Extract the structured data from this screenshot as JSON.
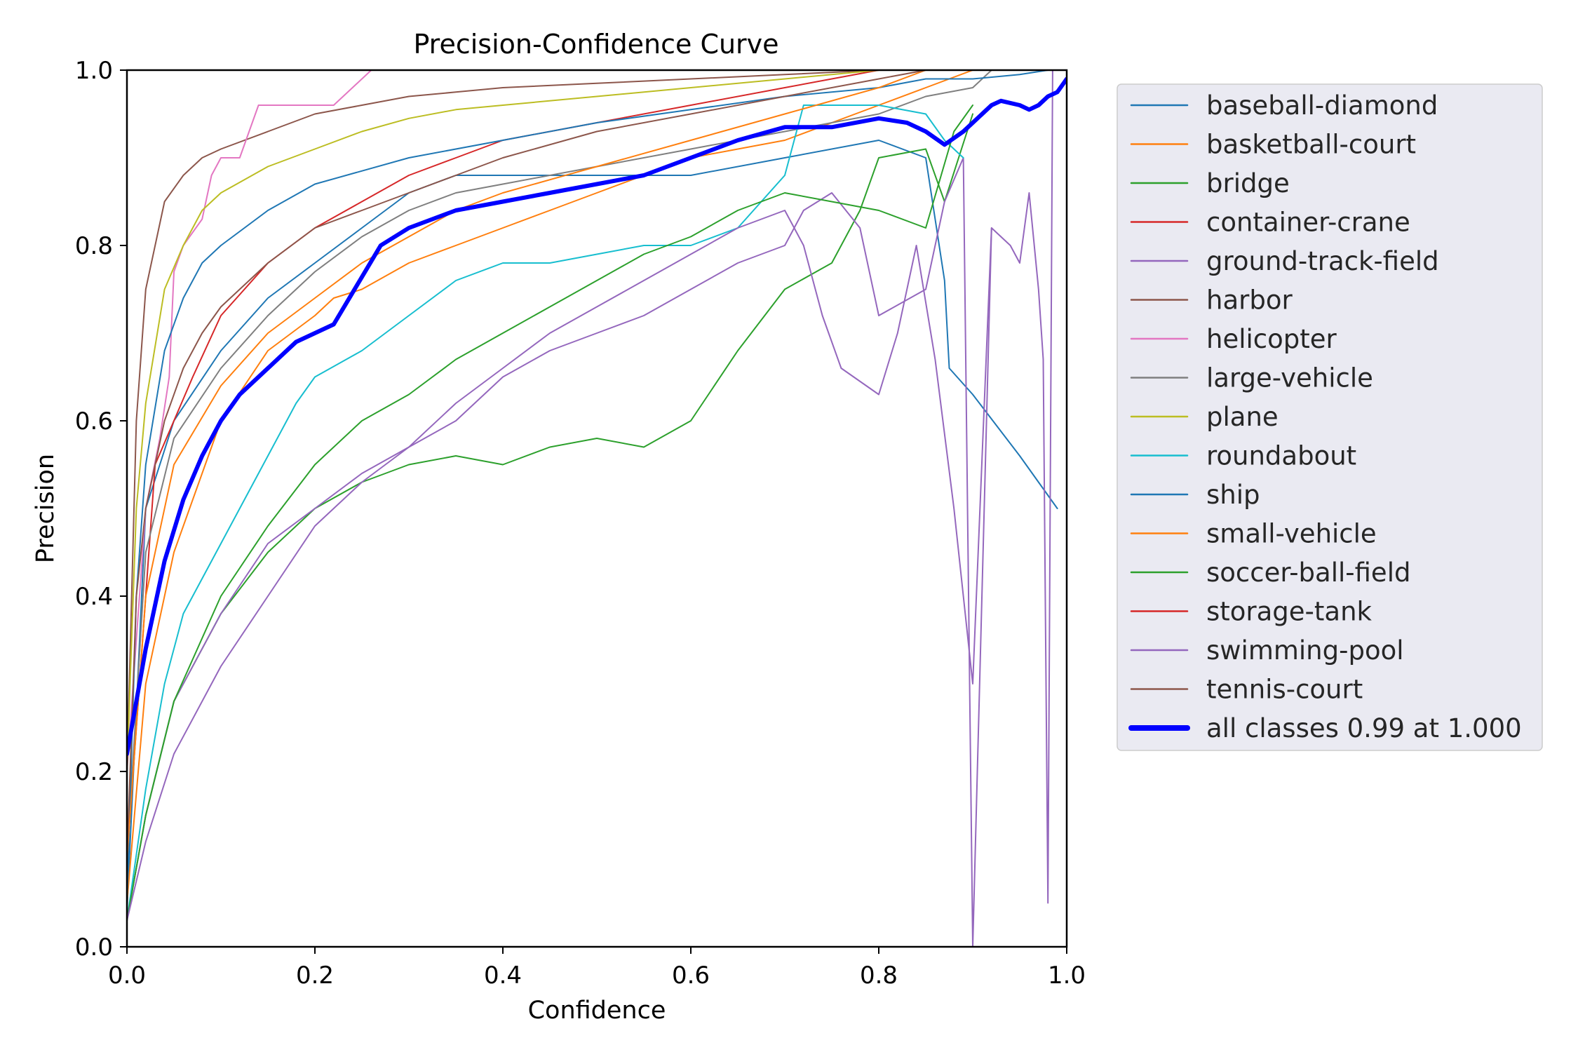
{
  "chart_data": {
    "type": "line",
    "title": "Precision-Confidence Curve",
    "xlabel": "Confidence",
    "ylabel": "Precision",
    "xlim": [
      0,
      1
    ],
    "ylim": [
      0,
      1
    ],
    "xticks": [
      "0.0",
      "0.2",
      "0.4",
      "0.6",
      "0.8",
      "1.0"
    ],
    "yticks": [
      "0.0",
      "0.2",
      "0.4",
      "0.6",
      "0.8",
      "1.0"
    ],
    "grid": false,
    "legend_position": "outside-right-top",
    "series": [
      {
        "name": "baseball-diamond",
        "color": "#1f77b4",
        "width": 2,
        "x": [
          0.0,
          0.02,
          0.05,
          0.1,
          0.15,
          0.2,
          0.25,
          0.3,
          0.35,
          0.4,
          0.5,
          0.6,
          0.7,
          0.8,
          0.85,
          0.87,
          0.875,
          0.9,
          0.95,
          0.99
        ],
        "y": [
          0.04,
          0.5,
          0.6,
          0.68,
          0.74,
          0.78,
          0.82,
          0.86,
          0.88,
          0.88,
          0.88,
          0.88,
          0.9,
          0.92,
          0.9,
          0.76,
          0.66,
          0.63,
          0.56,
          0.5
        ]
      },
      {
        "name": "basketball-court",
        "color": "#ff7f0e",
        "width": 2,
        "x": [
          0.0,
          0.02,
          0.05,
          0.1,
          0.15,
          0.2,
          0.22,
          0.25,
          0.3,
          0.35,
          0.4,
          0.45,
          0.5,
          0.55,
          0.6,
          0.7,
          0.8,
          0.85,
          0.9
        ],
        "y": [
          0.05,
          0.3,
          0.45,
          0.6,
          0.68,
          0.72,
          0.74,
          0.75,
          0.78,
          0.8,
          0.82,
          0.84,
          0.86,
          0.88,
          0.9,
          0.92,
          0.96,
          0.98,
          1.0
        ]
      },
      {
        "name": "bridge",
        "color": "#2ca02c",
        "width": 2,
        "x": [
          0.0,
          0.02,
          0.05,
          0.1,
          0.15,
          0.2,
          0.25,
          0.3,
          0.35,
          0.4,
          0.45,
          0.5,
          0.55,
          0.6,
          0.65,
          0.7,
          0.75,
          0.78,
          0.8,
          0.85,
          0.87,
          0.9
        ],
        "y": [
          0.03,
          0.15,
          0.28,
          0.38,
          0.45,
          0.5,
          0.53,
          0.55,
          0.56,
          0.55,
          0.57,
          0.58,
          0.57,
          0.6,
          0.68,
          0.75,
          0.78,
          0.84,
          0.9,
          0.91,
          0.85,
          0.95
        ]
      },
      {
        "name": "container-crane",
        "color": "#d62728",
        "width": 2,
        "x": [
          0.0,
          0.03,
          0.07,
          0.1,
          0.15,
          0.2,
          0.25,
          0.3,
          0.35,
          0.4,
          0.5,
          0.6,
          0.7,
          0.75,
          0.8
        ],
        "y": [
          0.1,
          0.55,
          0.65,
          0.72,
          0.78,
          0.82,
          0.85,
          0.88,
          0.9,
          0.92,
          0.94,
          0.96,
          0.98,
          0.99,
          1.0
        ]
      },
      {
        "name": "ground-track-field",
        "color": "#9467bd",
        "width": 2,
        "x": [
          0.0,
          0.02,
          0.05,
          0.1,
          0.15,
          0.2,
          0.25,
          0.3,
          0.35,
          0.4,
          0.45,
          0.5,
          0.55,
          0.6,
          0.65,
          0.7,
          0.72,
          0.75,
          0.78,
          0.8,
          0.85,
          0.87,
          0.89,
          0.9,
          0.92
        ],
        "y": [
          0.03,
          0.15,
          0.28,
          0.38,
          0.46,
          0.5,
          0.54,
          0.57,
          0.6,
          0.65,
          0.68,
          0.7,
          0.72,
          0.75,
          0.78,
          0.8,
          0.84,
          0.86,
          0.82,
          0.72,
          0.75,
          0.85,
          0.9,
          0.0,
          0.82
        ]
      },
      {
        "name": "harbor",
        "color": "#8c564b",
        "width": 2,
        "x": [
          0.0,
          0.01,
          0.02,
          0.04,
          0.06,
          0.08,
          0.1,
          0.15,
          0.2,
          0.25,
          0.3,
          0.35,
          0.4,
          0.5,
          0.6,
          0.7,
          0.8,
          0.9,
          0.95
        ],
        "y": [
          0.2,
          0.6,
          0.75,
          0.85,
          0.88,
          0.9,
          0.91,
          0.93,
          0.95,
          0.96,
          0.97,
          0.975,
          0.98,
          0.985,
          0.99,
          0.995,
          1.0,
          1.0,
          1.0
        ]
      },
      {
        "name": "helicopter",
        "color": "#e377c2",
        "width": 2,
        "x": [
          0.0,
          0.02,
          0.035,
          0.045,
          0.05,
          0.06,
          0.08,
          0.09,
          0.1,
          0.12,
          0.13,
          0.14,
          0.15,
          0.18,
          0.2,
          0.22,
          0.24,
          0.26
        ],
        "y": [
          0.2,
          0.5,
          0.58,
          0.65,
          0.77,
          0.8,
          0.83,
          0.88,
          0.9,
          0.9,
          0.93,
          0.96,
          0.96,
          0.96,
          0.96,
          0.96,
          0.98,
          1.0
        ]
      },
      {
        "name": "large-vehicle",
        "color": "#7f7f7f",
        "width": 2,
        "x": [
          0.0,
          0.02,
          0.05,
          0.1,
          0.15,
          0.2,
          0.25,
          0.3,
          0.35,
          0.4,
          0.5,
          0.6,
          0.7,
          0.8,
          0.85,
          0.9,
          0.92
        ],
        "y": [
          0.1,
          0.45,
          0.58,
          0.66,
          0.72,
          0.77,
          0.81,
          0.84,
          0.86,
          0.87,
          0.89,
          0.91,
          0.93,
          0.95,
          0.97,
          0.98,
          1.0
        ]
      },
      {
        "name": "plane",
        "color": "#bcbd22",
        "width": 2,
        "x": [
          0.0,
          0.01,
          0.02,
          0.04,
          0.06,
          0.08,
          0.1,
          0.15,
          0.2,
          0.25,
          0.3,
          0.35,
          0.4,
          0.5,
          0.6,
          0.7,
          0.8,
          0.9
        ],
        "y": [
          0.2,
          0.5,
          0.62,
          0.75,
          0.8,
          0.84,
          0.86,
          0.89,
          0.91,
          0.93,
          0.945,
          0.955,
          0.96,
          0.97,
          0.98,
          0.99,
          1.0,
          1.0
        ]
      },
      {
        "name": "roundabout",
        "color": "#17becf",
        "width": 2,
        "x": [
          0.0,
          0.02,
          0.04,
          0.06,
          0.08,
          0.1,
          0.12,
          0.15,
          0.18,
          0.2,
          0.25,
          0.3,
          0.35,
          0.4,
          0.45,
          0.5,
          0.55,
          0.6,
          0.65,
          0.7,
          0.72,
          0.75,
          0.8,
          0.85,
          0.87,
          0.89
        ],
        "y": [
          0.03,
          0.18,
          0.3,
          0.38,
          0.42,
          0.46,
          0.5,
          0.56,
          0.62,
          0.65,
          0.68,
          0.72,
          0.76,
          0.78,
          0.78,
          0.79,
          0.8,
          0.8,
          0.82,
          0.88,
          0.96,
          0.96,
          0.96,
          0.95,
          0.92,
          0.9
        ]
      },
      {
        "name": "ship",
        "color": "#1f77b4",
        "width": 2,
        "x": [
          0.0,
          0.01,
          0.02,
          0.04,
          0.06,
          0.08,
          0.1,
          0.15,
          0.2,
          0.3,
          0.4,
          0.5,
          0.6,
          0.7,
          0.8,
          0.85,
          0.9,
          0.95,
          0.98,
          0.985
        ],
        "y": [
          0.05,
          0.4,
          0.55,
          0.68,
          0.74,
          0.78,
          0.8,
          0.84,
          0.87,
          0.9,
          0.92,
          0.94,
          0.955,
          0.97,
          0.98,
          0.99,
          0.99,
          0.995,
          1.0,
          1.0
        ]
      },
      {
        "name": "small-vehicle",
        "color": "#ff7f0e",
        "width": 2,
        "x": [
          0.0,
          0.02,
          0.05,
          0.1,
          0.15,
          0.2,
          0.25,
          0.3,
          0.35,
          0.4,
          0.5,
          0.6,
          0.7,
          0.8,
          0.85
        ],
        "y": [
          0.1,
          0.4,
          0.55,
          0.64,
          0.7,
          0.74,
          0.78,
          0.81,
          0.84,
          0.86,
          0.89,
          0.92,
          0.95,
          0.98,
          1.0
        ]
      },
      {
        "name": "soccer-ball-field",
        "color": "#2ca02c",
        "width": 2,
        "x": [
          0.0,
          0.02,
          0.05,
          0.1,
          0.15,
          0.2,
          0.25,
          0.3,
          0.35,
          0.4,
          0.45,
          0.5,
          0.55,
          0.6,
          0.65,
          0.7,
          0.75,
          0.8,
          0.85,
          0.88,
          0.9
        ],
        "y": [
          0.03,
          0.15,
          0.28,
          0.4,
          0.48,
          0.55,
          0.6,
          0.63,
          0.67,
          0.7,
          0.73,
          0.76,
          0.79,
          0.81,
          0.84,
          0.86,
          0.85,
          0.84,
          0.82,
          0.93,
          0.96
        ]
      },
      {
        "name": "storage-tank",
        "color": "#d62728",
        "width": 2,
        "x": [
          0.0,
          0.245,
          0.247,
          0.3,
          0.4,
          0.5,
          0.6,
          0.7,
          0.8,
          0.9
        ],
        "y": [
          0.0,
          0.0,
          0.0,
          0.0,
          0.0,
          0.0,
          0.0,
          0.0,
          0.0,
          0.0
        ]
      },
      {
        "name": "swimming-pool",
        "color": "#9467bd",
        "width": 2,
        "x": [
          0.0,
          0.02,
          0.05,
          0.1,
          0.15,
          0.2,
          0.25,
          0.3,
          0.35,
          0.4,
          0.45,
          0.5,
          0.55,
          0.6,
          0.65,
          0.7,
          0.72,
          0.74,
          0.76,
          0.8,
          0.82,
          0.84,
          0.86,
          0.88,
          0.9,
          0.92,
          0.94,
          0.95,
          0.96,
          0.97,
          0.975,
          0.98,
          0.985
        ],
        "y": [
          0.03,
          0.12,
          0.22,
          0.32,
          0.4,
          0.48,
          0.53,
          0.57,
          0.62,
          0.66,
          0.7,
          0.73,
          0.76,
          0.79,
          0.82,
          0.84,
          0.8,
          0.72,
          0.66,
          0.63,
          0.7,
          0.8,
          0.67,
          0.5,
          0.3,
          0.82,
          0.8,
          0.78,
          0.86,
          0.75,
          0.67,
          0.05,
          1.0
        ]
      },
      {
        "name": "tennis-court",
        "color": "#8c564b",
        "width": 2,
        "x": [
          0.0,
          0.01,
          0.02,
          0.04,
          0.06,
          0.08,
          0.1,
          0.15,
          0.2,
          0.25,
          0.3,
          0.35,
          0.4,
          0.5,
          0.6,
          0.7,
          0.8,
          0.85
        ],
        "y": [
          0.1,
          0.4,
          0.5,
          0.6,
          0.66,
          0.7,
          0.73,
          0.78,
          0.82,
          0.84,
          0.86,
          0.88,
          0.9,
          0.93,
          0.95,
          0.97,
          0.99,
          1.0
        ]
      },
      {
        "name": "all classes 0.99 at 1.000",
        "color": "#0000ff",
        "width": 6,
        "x": [
          0.0,
          0.02,
          0.04,
          0.06,
          0.08,
          0.1,
          0.12,
          0.15,
          0.18,
          0.22,
          0.27,
          0.3,
          0.35,
          0.4,
          0.45,
          0.5,
          0.55,
          0.6,
          0.65,
          0.7,
          0.75,
          0.8,
          0.83,
          0.85,
          0.87,
          0.89,
          0.91,
          0.92,
          0.93,
          0.95,
          0.96,
          0.97,
          0.98,
          0.99,
          1.0
        ],
        "y": [
          0.22,
          0.34,
          0.44,
          0.51,
          0.56,
          0.6,
          0.63,
          0.66,
          0.69,
          0.71,
          0.8,
          0.82,
          0.84,
          0.85,
          0.86,
          0.87,
          0.88,
          0.9,
          0.92,
          0.935,
          0.935,
          0.945,
          0.94,
          0.93,
          0.915,
          0.93,
          0.95,
          0.96,
          0.965,
          0.96,
          0.955,
          0.96,
          0.97,
          0.975,
          0.99
        ]
      }
    ]
  }
}
